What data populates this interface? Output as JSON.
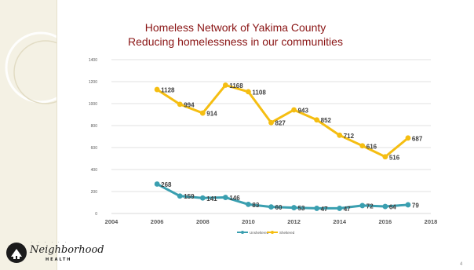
{
  "slide": {
    "title_line1": "Homeless Network of Yakima County",
    "title_line2": "Reducing homelessness in our communities",
    "page_number": "4"
  },
  "logo": {
    "small_text": "· · · · · ·",
    "name": "Neighborhood",
    "health": "HEALTH"
  },
  "colors": {
    "title": "#8a1414",
    "unsheltered": "#3a9fb0",
    "sheltered": "#f5be12",
    "grid": "#d9d9d9",
    "sidebar": "#f4f1e4"
  },
  "chart_data": {
    "type": "line",
    "title": "",
    "xlabel": "",
    "ylabel": "",
    "xlim": [
      2004,
      2018
    ],
    "ylim": [
      0,
      1400
    ],
    "x_ticks": [
      2004,
      2006,
      2008,
      2010,
      2012,
      2014,
      2016,
      2018
    ],
    "y_ticks": [
      0,
      200,
      400,
      600,
      800,
      1000,
      1200,
      1400
    ],
    "grid": true,
    "legend_position": "bottom",
    "series": [
      {
        "name": "Unsheltered",
        "color": "#3a9fb0",
        "x": [
          2006,
          2007,
          2008,
          2009,
          2010,
          2011,
          2012,
          2013,
          2014,
          2015,
          2016,
          2017
        ],
        "values": [
          268,
          159,
          141,
          146,
          83,
          60,
          53,
          47,
          47,
          72,
          64,
          79
        ]
      },
      {
        "name": "Sheltered",
        "color": "#f5be12",
        "x": [
          2006,
          2007,
          2008,
          2009,
          2010,
          2011,
          2012,
          2013,
          2014,
          2015,
          2016,
          2017
        ],
        "values": [
          1128,
          994,
          914,
          1168,
          1108,
          827,
          943,
          852,
          712,
          616,
          516,
          687
        ]
      }
    ]
  }
}
